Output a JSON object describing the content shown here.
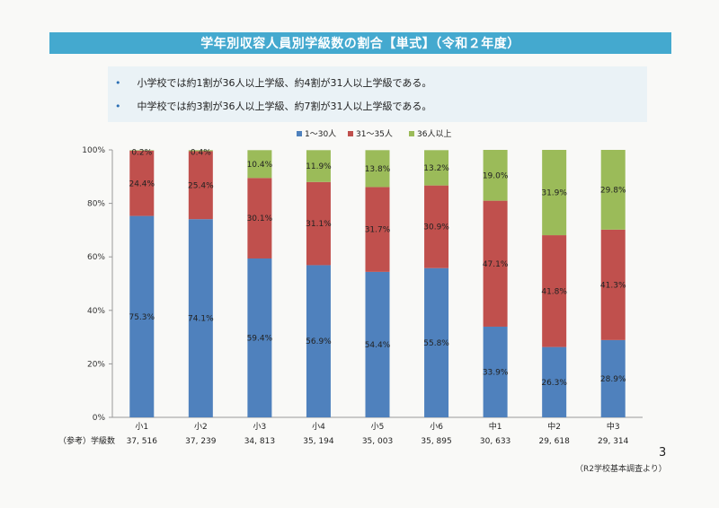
{
  "title": "学年別収容人員別学級数の割合【単式】（令和２年度）",
  "bullets": [
    "小学校では約1割が36人以上学級、約4割が31人以上学級である。",
    "中学校では約3割が36人以上学級、約7割が31人以上学級である。"
  ],
  "bullet_marker": "•",
  "page_number": "3",
  "source": "（R2学校基本調査より）",
  "colors": {
    "s1": "#4f81bd",
    "s2": "#c0504d",
    "s3": "#9bbb59",
    "title": "#44a9cf"
  },
  "chart_data": {
    "type": "bar",
    "stacked": true,
    "categories": [
      "小1",
      "小2",
      "小3",
      "小4",
      "小5",
      "小6",
      "中1",
      "中2",
      "中3"
    ],
    "series": [
      {
        "name": "1～30人",
        "values": [
          75.3,
          74.1,
          59.4,
          56.9,
          54.4,
          55.8,
          33.9,
          26.3,
          28.9
        ],
        "labels": [
          "75.3%",
          "74.1%",
          "59.4%",
          "56.9%",
          "54.4%",
          "55.8%",
          "33.9%",
          "26.3%",
          "28.9%"
        ]
      },
      {
        "name": "31～35人",
        "values": [
          24.4,
          25.4,
          30.1,
          31.1,
          31.7,
          30.9,
          47.1,
          41.8,
          41.3
        ],
        "labels": [
          "24.4%",
          "25.4%",
          "30.1%",
          "31.1%",
          "31.7%",
          "30.9%",
          "47.1%",
          "41.8%",
          "41.3%"
        ]
      },
      {
        "name": "36人以上",
        "values": [
          0.2,
          0.4,
          10.4,
          11.9,
          13.8,
          13.2,
          19.0,
          31.9,
          29.8
        ],
        "labels": [
          "0.2%",
          "0.4%",
          "10.4%",
          "11.9%",
          "13.8%",
          "13.2%",
          "19.0%",
          "31.9%",
          "29.8%"
        ]
      }
    ],
    "ylim": [
      0,
      100
    ],
    "yticks": [
      0,
      20,
      40,
      60,
      80,
      100
    ],
    "ytick_labels": [
      "0%",
      "20%",
      "40%",
      "60%",
      "80%",
      "100%"
    ],
    "legend_position": "top-center",
    "grid": false,
    "reference_label": "（参考）学級数",
    "class_counts": [
      "37, 516",
      "37, 239",
      "34, 813",
      "35, 194",
      "35, 003",
      "35, 895",
      "30, 633",
      "29, 618",
      "29, 314"
    ]
  }
}
